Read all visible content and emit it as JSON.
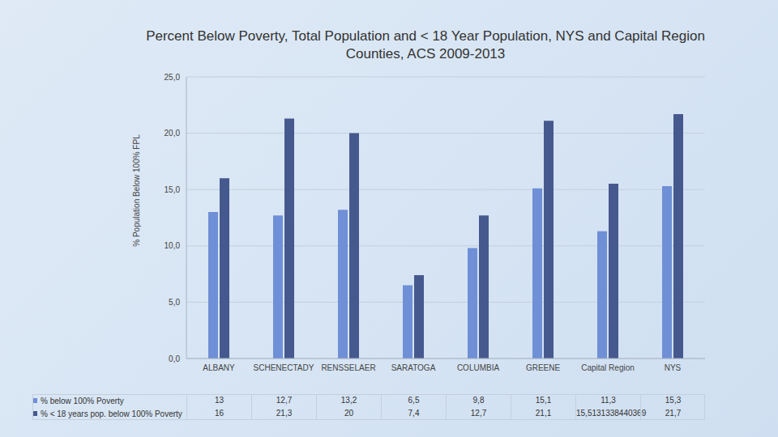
{
  "chart_data": {
    "type": "bar",
    "title": "Percent Below Poverty, Total Population and < 18 Year Population, NYS and Capital Region Counties, ACS 2009-2013",
    "y_label": "% Population Below 100% FPL",
    "categories": [
      "ALBANY",
      "SCHENECTADY",
      "RENSSELAER",
      "SARATOGA",
      "COLUMBIA",
      "GREENE",
      "Capital Region",
      "NYS"
    ],
    "series": [
      {
        "name": "% below 100% Poverty",
        "color": "#6f8fd6",
        "values": [
          13,
          12.7,
          13.2,
          6.5,
          9.8,
          15.1,
          11.3,
          15.3
        ],
        "value_labels": [
          "13",
          "12,7",
          "13,2",
          "6,5",
          "9,8",
          "15,1",
          "11,3",
          "15,3"
        ]
      },
      {
        "name": "% < 18 years pop. below 100% Poverty",
        "color": "#46598f",
        "values": [
          16,
          21.3,
          20,
          7.4,
          12.7,
          21.1,
          15.5131338440369,
          21.7
        ],
        "value_labels": [
          "16",
          "21,3",
          "20",
          "7,4",
          "12,7",
          "21,1",
          "15,5131338440369",
          "21,7"
        ]
      }
    ],
    "ylim": [
      0,
      25
    ],
    "yticks": [
      {
        "value": 0,
        "label": "0,0"
      },
      {
        "value": 5,
        "label": "5,0"
      },
      {
        "value": 10,
        "label": "10,0"
      },
      {
        "value": 15,
        "label": "15,0"
      },
      {
        "value": 20,
        "label": "20,0"
      },
      {
        "value": 25,
        "label": "25,0"
      }
    ],
    "grid": true
  }
}
